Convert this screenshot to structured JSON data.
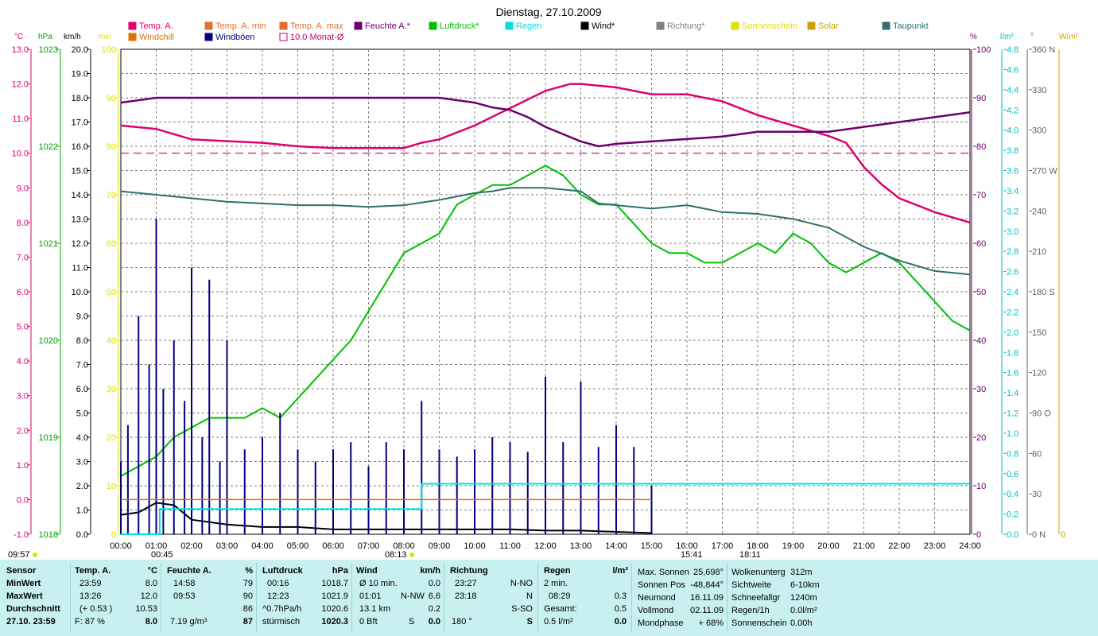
{
  "title": "Dienstag, 27.10.2009",
  "legend": [
    {
      "label": "Temp. A.",
      "color": "#e0006e"
    },
    {
      "label": "Windchill",
      "color": "#e07000"
    },
    {
      "label": "Temp. A. min",
      "color": "#e07030"
    },
    {
      "label": "Windböen",
      "color": "#000080"
    },
    {
      "label": "Temp. A. max",
      "color": "#e07030"
    },
    {
      "label": "10.0 Monat-Ø",
      "color": "#c0006e"
    },
    {
      "label": "Feuchte A.*",
      "color": "#6a006a"
    },
    {
      "label": "Luftdruck*",
      "color": "#00c000"
    },
    {
      "label": "Regen",
      "color": "#00e0e0"
    },
    {
      "label": "Wind*",
      "color": "#000000"
    },
    {
      "label": "Richtung*",
      "color": "#808080"
    },
    {
      "label": "Sonnenschein",
      "color": "#e0e000"
    },
    {
      "label": "Solar",
      "color": "#d0a000"
    },
    {
      "label": "Taupunkt",
      "color": "#2f6f6f"
    }
  ],
  "axis_headers": {
    "c": "°C",
    "hpa": "hPa",
    "kmh": "km/h",
    "min": "min",
    "pct": "%",
    "lm2": "l/m²",
    "deg": "°",
    "wm2": "W/m²"
  },
  "time_markers": {
    "sunrise": "09:57",
    "moonset": "00:45",
    "sun_noon": "08:13",
    "sunset": "15:41",
    "moonrise": "18:11"
  },
  "chart_data": {
    "type": "line",
    "x_label": "Uhrzeit",
    "x_ticks": [
      "00:00",
      "01:00",
      "02:00",
      "03:00",
      "04:00",
      "05:00",
      "06:00",
      "07:00",
      "08:00",
      "09:00",
      "10:00",
      "11:00",
      "12:00",
      "13:00",
      "14:00",
      "15:00",
      "16:00",
      "17:00",
      "18:00",
      "19:00",
      "20:00",
      "21:00",
      "22:00",
      "23:00",
      "24:00"
    ],
    "y_axes": {
      "temp_c": {
        "range": [
          -1.0,
          13.0
        ],
        "ticks": [
          "13.0",
          "12.0",
          "11.0",
          "10.0",
          "9.0",
          "8.0",
          "7.0",
          "6.0",
          "5.0",
          "4.0",
          "3.0",
          "2.0",
          "1.0",
          "0.0",
          "-1.0"
        ]
      },
      "pressure_hpa": {
        "range": [
          1018,
          1023
        ],
        "ticks": [
          "1023",
          "1022",
          "1021",
          "1020",
          "1019",
          "1018"
        ]
      },
      "wind_kmh": {
        "range": [
          0,
          20
        ],
        "ticks": [
          "20.0",
          "19.0",
          "18.0",
          "17.0",
          "16.0",
          "15.0",
          "14.0",
          "13.0",
          "12.0",
          "11.0",
          "10.0",
          "9.0",
          "8.0",
          "7.0",
          "6.0",
          "5.0",
          "4.0",
          "3.0",
          "2.0",
          "1.0",
          "0.0"
        ]
      },
      "min": {
        "range": [
          0,
          100
        ],
        "ticks": [
          "100",
          "90",
          "80",
          "70",
          "60",
          "50",
          "40",
          "30",
          "20",
          "10",
          "0"
        ]
      },
      "humidity_pct": {
        "range": [
          0,
          100
        ],
        "ticks": [
          "100",
          "90",
          "80",
          "70",
          "60",
          "50",
          "40",
          "30",
          "20",
          "10",
          "0"
        ]
      },
      "rain_lm2": {
        "range": [
          0,
          4.8
        ],
        "ticks": [
          "4.8",
          "4.6",
          "4.4",
          "4.2",
          "4.0",
          "3.8",
          "3.6",
          "3.4",
          "3.2",
          "3.0",
          "2.8",
          "2.6",
          "2.4",
          "2.2",
          "2.0",
          "1.8",
          "1.6",
          "1.4",
          "1.2",
          "1.0",
          "0.8",
          "0.6",
          "0.4",
          "0.2",
          "0.0"
        ]
      },
      "direction_deg": {
        "range": [
          0,
          360
        ],
        "ticks": [
          "360 N",
          "330",
          "300",
          "270 W",
          "240",
          "210",
          "180 S",
          "150",
          "120",
          "90 O",
          "60",
          "30",
          "0 N"
        ]
      },
      "solar_wm2": {
        "range": [
          0,
          0
        ],
        "ticks": [
          "0"
        ]
      }
    },
    "series": [
      {
        "name": "Temp. A.",
        "axis": "temp_c",
        "color": "#e0006e",
        "x": [
          0,
          1,
          2,
          3,
          4,
          5,
          6,
          7,
          8,
          8.5,
          9,
          10,
          11,
          12,
          12.7,
          13,
          14,
          15,
          16,
          17,
          18,
          19,
          20,
          20.5,
          21,
          21.5,
          22,
          23,
          24
        ],
        "y": [
          10.8,
          10.7,
          10.4,
          10.35,
          10.3,
          10.2,
          10.15,
          10.15,
          10.15,
          10.3,
          10.4,
          10.8,
          11.3,
          11.8,
          12.0,
          12.0,
          11.9,
          11.7,
          11.7,
          11.5,
          11.1,
          10.8,
          10.5,
          10.3,
          9.6,
          9.1,
          8.7,
          8.3,
          8.0
        ]
      },
      {
        "name": "Feuchte A.*",
        "axis": "humidity_pct",
        "color": "#6a006a",
        "x": [
          0,
          1,
          2,
          3,
          4,
          5,
          6,
          7,
          8,
          9,
          10,
          10.5,
          11,
          11.5,
          12,
          13,
          13.5,
          14,
          15,
          16,
          17,
          18,
          19,
          20,
          21,
          22,
          23,
          24
        ],
        "y": [
          89,
          90,
          90,
          90,
          90,
          90,
          90,
          90,
          90,
          90,
          89,
          88,
          87.5,
          86,
          84,
          81,
          80,
          80.5,
          81,
          81.5,
          82,
          83,
          83,
          83,
          84,
          85,
          86,
          87
        ]
      },
      {
        "name": "Luftdruck*",
        "axis": "pressure_hpa",
        "color": "#00c000",
        "x": [
          0,
          0.5,
          1,
          1.5,
          2,
          2.5,
          3,
          3.5,
          4,
          4.5,
          5,
          5.5,
          6,
          6.5,
          7,
          7.5,
          8,
          8.5,
          9,
          9.5,
          10,
          10.5,
          11,
          11.5,
          12,
          12.5,
          13,
          13.5,
          14,
          14.5,
          15,
          15.5,
          16,
          16.5,
          17,
          17.5,
          18,
          18.5,
          19,
          19.5,
          20,
          20.5,
          21,
          21.5,
          22,
          22.5,
          23,
          23.5,
          24
        ],
        "y": [
          1018.6,
          1018.7,
          1018.8,
          1019.0,
          1019.1,
          1019.2,
          1019.2,
          1019.2,
          1019.3,
          1019.2,
          1019.4,
          1019.6,
          1019.8,
          1020.0,
          1020.3,
          1020.6,
          1020.9,
          1021.0,
          1021.1,
          1021.4,
          1021.5,
          1021.6,
          1021.6,
          1021.7,
          1021.8,
          1021.7,
          1021.5,
          1021.4,
          1021.4,
          1021.2,
          1021.0,
          1020.9,
          1020.9,
          1020.8,
          1020.8,
          1020.9,
          1021.0,
          1020.9,
          1021.1,
          1021.0,
          1020.8,
          1020.7,
          1020.8,
          1020.9,
          1020.8,
          1020.6,
          1020.4,
          1020.2,
          1020.1
        ]
      },
      {
        "name": "Taupunkt",
        "axis": "temp_c",
        "color": "#2f6f6f",
        "x": [
          0,
          1,
          2,
          3,
          4,
          5,
          6,
          7,
          8,
          9,
          10,
          10.5,
          11,
          12,
          13,
          13.5,
          14,
          15,
          16,
          17,
          18,
          19,
          20,
          21,
          22,
          23,
          24
        ],
        "y": [
          8.9,
          8.8,
          8.7,
          8.6,
          8.55,
          8.5,
          8.5,
          8.45,
          8.5,
          8.65,
          8.85,
          8.9,
          9.0,
          9.0,
          8.9,
          8.55,
          8.5,
          8.4,
          8.5,
          8.3,
          8.25,
          8.1,
          7.85,
          7.3,
          6.9,
          6.6,
          6.5
        ]
      },
      {
        "name": "Wind*",
        "axis": "wind_kmh",
        "color": "#000000",
        "x": [
          0,
          0.5,
          1,
          1.5,
          2,
          2.5,
          3,
          4,
          5,
          6,
          7,
          8,
          9,
          10,
          11,
          12,
          13,
          14,
          15
        ],
        "y": [
          0.8,
          0.9,
          1.3,
          1.2,
          0.6,
          0.5,
          0.4,
          0.3,
          0.3,
          0.2,
          0.2,
          0.2,
          0.2,
          0.2,
          0.2,
          0.15,
          0.15,
          0.1,
          0.05
        ]
      },
      {
        "name": "Windböen",
        "axis": "wind_kmh",
        "color": "#000080",
        "x": [
          0,
          0.2,
          0.5,
          0.8,
          1,
          1.2,
          1.5,
          1.8,
          2,
          2.3,
          2.5,
          2.8,
          3,
          3.5,
          4,
          4.5,
          5,
          5.5,
          6,
          6.5,
          7,
          7.5,
          8,
          8.5,
          9,
          9.5,
          10,
          10.5,
          11,
          11.5,
          12,
          12.5,
          13,
          13.5,
          14,
          14.5,
          15
        ],
        "y": [
          3.0,
          4.5,
          9.0,
          7.0,
          13.0,
          6.0,
          8.0,
          5.5,
          11.0,
          4.0,
          10.5,
          3.0,
          8.0,
          3.5,
          4.0,
          5.0,
          3.5,
          3.0,
          3.5,
          3.8,
          2.8,
          3.8,
          3.5,
          5.5,
          3.5,
          3.2,
          3.5,
          4.0,
          3.8,
          3.4,
          6.5,
          3.8,
          6.3,
          3.6,
          4.5,
          3.6,
          2.0
        ]
      },
      {
        "name": "Regen",
        "axis": "rain_lm2",
        "color": "#00e0e0",
        "x": [
          0,
          1.1,
          1.1,
          8.5,
          8.5,
          15.0,
          15.0,
          24
        ],
        "y": [
          0,
          0,
          0.25,
          0.25,
          0.5,
          0.5,
          0.5,
          0.5
        ]
      },
      {
        "name": "Windchill",
        "axis": "temp_c",
        "color": "#e07000",
        "x": [
          0,
          15
        ],
        "y": [
          0.0,
          0.0
        ]
      },
      {
        "name": "10.0 Monat-Ø",
        "axis": "temp_c",
        "color": "#c0006e",
        "x": [
          0,
          24
        ],
        "y": [
          10.0,
          10.0
        ]
      }
    ]
  },
  "table": {
    "sensor": {
      "header": "Sensor",
      "rows": [
        "MinWert",
        "MaxWert",
        "Durchschnitt",
        "27.10. 23:59"
      ]
    },
    "temp": {
      "header": "Temp. A.",
      "unit": "°C",
      "rows": [
        [
          "23:59",
          "8.0"
        ],
        [
          "13:26",
          "12.0"
        ],
        [
          "(+ 0.53 )",
          "10.53"
        ],
        [
          "F: 87 %",
          "8.0"
        ]
      ]
    },
    "humidity": {
      "header": "Feuchte A.",
      "unit": "%",
      "rows": [
        [
          "14:58",
          "79"
        ],
        [
          "09:53",
          "90"
        ],
        [
          "",
          "86"
        ],
        [
          "7.19 g/m³",
          "87"
        ]
      ]
    },
    "pressure": {
      "header": "Luftdruck",
      "unit": "hPa",
      "rows": [
        [
          "00:16",
          "1018.7"
        ],
        [
          "12:23",
          "1021.9"
        ],
        [
          "^0.7hPa/h",
          "1020.6"
        ],
        [
          "stürmisch",
          "1020.3"
        ]
      ]
    },
    "wind": {
      "header": "Wind",
      "unit": "km/h",
      "rows": [
        [
          "Ø 10 min.",
          "",
          "0.0"
        ],
        [
          "01:01",
          "N-NW",
          "6.6"
        ],
        [
          "13.1 km",
          "",
          "0.2"
        ],
        [
          "0 Bft",
          "S",
          "0.0"
        ]
      ]
    },
    "direction": {
      "header": "Richtung",
      "rows": [
        [
          "23:27",
          "N-NO"
        ],
        [
          "23:18",
          "N"
        ],
        [
          "",
          "S-SO"
        ],
        [
          "180 °",
          "S"
        ]
      ]
    },
    "rain": {
      "header": "Regen",
      "unit": "l/m²",
      "rows": [
        [
          "2 min.",
          ""
        ],
        [
          "08:29",
          "0.3"
        ],
        [
          "Gesamt:",
          "0.5"
        ],
        [
          "0.5 l/m²",
          "0.0"
        ]
      ]
    },
    "astro": {
      "rows": [
        [
          "Max. Sonnen",
          "25,698°"
        ],
        [
          "Sonnen Pos",
          "-48,844°"
        ],
        [
          "Neumond",
          "16.11.09"
        ],
        [
          "Vollmond",
          "02.11.09"
        ],
        [
          "Mondphase",
          "+ 68%"
        ]
      ]
    },
    "misc": {
      "rows": [
        [
          "Wolkenunterg",
          "312m"
        ],
        [
          "Sichtweite",
          "6-10km"
        ],
        [
          "Schneefallgr",
          "1240m"
        ],
        [
          "Regen/1h",
          "0.0l/m²"
        ],
        [
          "Sonnenschein",
          "0.00h"
        ]
      ]
    }
  }
}
